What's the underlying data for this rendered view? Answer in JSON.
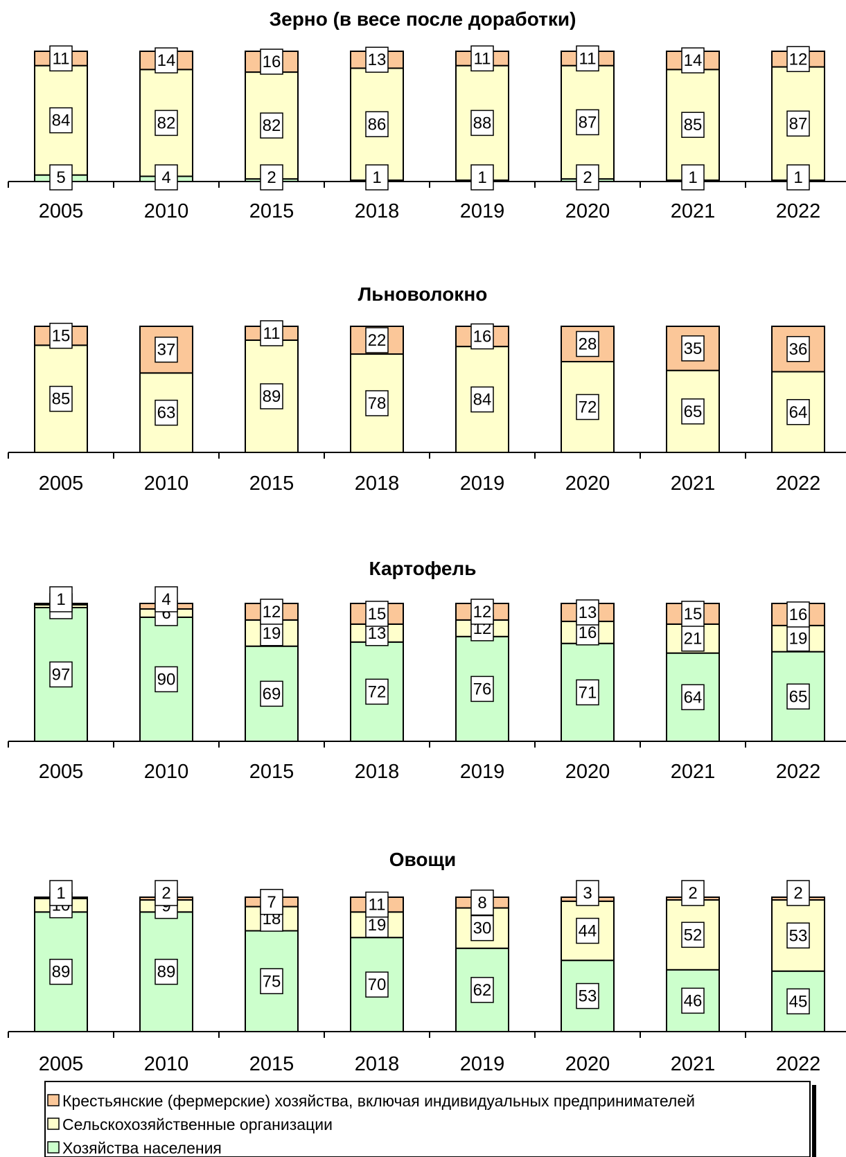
{
  "colors": {
    "farms": "#fbc799",
    "orgs": "#ffffcc",
    "households": "#ccffcc",
    "outline": "#000000"
  },
  "legend": {
    "items": [
      {
        "key": "farms",
        "label": "Крестьянские (фермерские) хозяйства, включая индивидуальных предпринимателей"
      },
      {
        "key": "orgs",
        "label": "Сельскохозяйственные организации"
      },
      {
        "key": "households",
        "label": "Хозяйства населения"
      }
    ]
  },
  "chart_data": [
    {
      "type": "bar",
      "stacked": true,
      "title": "Зерно (в весе после доработки)",
      "categories": [
        "2005",
        "2010",
        "2015",
        "2018",
        "2019",
        "2020",
        "2021",
        "2022"
      ],
      "series": [
        {
          "key": "households",
          "name": "Хозяйства населения",
          "values": [
            5,
            4,
            2,
            1,
            1,
            2,
            1,
            1
          ]
        },
        {
          "key": "orgs",
          "name": "Сельскохозяйственные организации",
          "values": [
            84,
            82,
            82,
            86,
            88,
            87,
            85,
            87
          ]
        },
        {
          "key": "farms",
          "name": "Крестьянские (фермерские) хозяйства, включая индивидуальных предпринимателей",
          "values": [
            11,
            14,
            16,
            13,
            11,
            11,
            14,
            12
          ]
        }
      ],
      "ylim": [
        0,
        100
      ]
    },
    {
      "type": "bar",
      "stacked": true,
      "title": "Льноволокно",
      "categories": [
        "2005",
        "2010",
        "2015",
        "2018",
        "2019",
        "2020",
        "2021",
        "2022"
      ],
      "series": [
        {
          "key": "orgs",
          "name": "Сельскохозяйственные организации",
          "values": [
            85,
            63,
            89,
            78,
            84,
            72,
            65,
            64
          ]
        },
        {
          "key": "farms",
          "name": "Крестьянские (фермерские) хозяйства, включая индивидуальных предпринимателей",
          "values": [
            15,
            37,
            11,
            22,
            16,
            28,
            35,
            36
          ]
        }
      ],
      "ylim": [
        0,
        100
      ]
    },
    {
      "type": "bar",
      "stacked": true,
      "title": "Картофель",
      "categories": [
        "2005",
        "2010",
        "2015",
        "2018",
        "2019",
        "2020",
        "2021",
        "2022"
      ],
      "series": [
        {
          "key": "households",
          "name": "Хозяйства населения",
          "values": [
            97,
            90,
            69,
            72,
            76,
            71,
            64,
            65
          ]
        },
        {
          "key": "orgs",
          "name": "Сельскохозяйственные организации",
          "values": [
            2,
            6,
            19,
            13,
            12,
            16,
            21,
            19
          ]
        },
        {
          "key": "farms",
          "name": "Крестьянские (фермерские) хозяйства, включая индивидуальных предпринимателей",
          "values": [
            1,
            4,
            12,
            15,
            12,
            13,
            15,
            16
          ]
        }
      ],
      "ylim": [
        0,
        100
      ]
    },
    {
      "type": "bar",
      "stacked": true,
      "title": "Овощи",
      "categories": [
        "2005",
        "2010",
        "2015",
        "2018",
        "2019",
        "2020",
        "2021",
        "2022"
      ],
      "series": [
        {
          "key": "households",
          "name": "Хозяйства населения",
          "values": [
            89,
            89,
            75,
            70,
            62,
            53,
            46,
            45
          ]
        },
        {
          "key": "orgs",
          "name": "Сельскохозяйственные организации",
          "values": [
            10,
            9,
            18,
            19,
            30,
            44,
            52,
            53
          ]
        },
        {
          "key": "farms",
          "name": "Крестьянские (фермерские) хозяйства, включая индивидуальных предпринимателей",
          "values": [
            1,
            2,
            7,
            11,
            8,
            3,
            2,
            2
          ]
        }
      ],
      "ylim": [
        0,
        100
      ]
    }
  ]
}
